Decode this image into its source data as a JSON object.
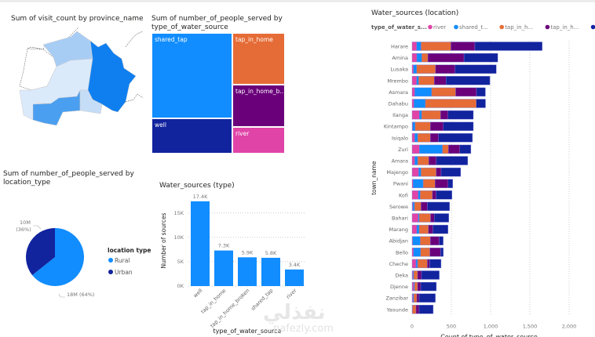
{
  "map": {
    "title": "Sum of visit_count by province_name",
    "colors": [
      "#ffffff",
      "#a8cdf5",
      "#dbeafb",
      "#4a9ff0",
      "#0f7ff0",
      "#c6ddf7"
    ]
  },
  "treemap": {
    "title": "Sum of number_of_people_served by type_of_water_source",
    "tiles": [
      {
        "label": "shared_tap",
        "color": "#118dff"
      },
      {
        "label": "well",
        "color": "#12239e"
      },
      {
        "label": "tap_in_home",
        "color": "#e66c37"
      },
      {
        "label": "tap_in_home_b...",
        "color": "#6b007b"
      },
      {
        "label": "river",
        "color": "#e044a7"
      }
    ]
  },
  "pie": {
    "title": "Sum of number_of_people_served by location_type",
    "legend_title": "location type",
    "slices": [
      {
        "name": "Rural",
        "value": 18,
        "label": "18M (64%)",
        "color": "#118dff"
      },
      {
        "name": "Urban",
        "value": 10,
        "label_value": "10M",
        "label_pct": "(36%)",
        "color": "#12239e"
      }
    ]
  },
  "chart_data": [
    {
      "type": "bar",
      "title": "Water_sources (type)",
      "xlabel": "type_of_water_source",
      "ylabel": "Number of sources",
      "categories": [
        "well",
        "tap_in_home",
        "tap_in_home_broken",
        "shared_tap",
        "river"
      ],
      "values": [
        17400,
        7300,
        5900,
        5800,
        3400
      ],
      "data_labels": [
        "17.4K",
        "7.3K",
        "5.9K",
        "5.8K",
        "3.4K"
      ],
      "yticks": [
        "0K",
        "5K",
        "10K",
        "15K"
      ],
      "ylim": [
        0,
        18500
      ],
      "color": "#118dff",
      "grid": true
    },
    {
      "type": "bar",
      "orientation": "horizontal-stacked",
      "title": "Water_sources (location)",
      "legend_title": "type_of_water_s...",
      "legend_labels": [
        "river",
        "shared_t...",
        "tap_in_h...",
        "tap_in_h...",
        "well"
      ],
      "legend_placement": "top-left",
      "xlabel": "Count of type_of_water_source",
      "ylabel": "town_name",
      "xticks": [
        "0",
        "500",
        "1,000",
        "1,500",
        "2,000"
      ],
      "xlim": [
        0,
        2000
      ],
      "grid": true,
      "series": [
        {
          "name": "river",
          "color": "#e044a7"
        },
        {
          "name": "shared_tap",
          "color": "#118dff"
        },
        {
          "name": "tap_in_home",
          "color": "#e66c37"
        },
        {
          "name": "tap_in_home_broken",
          "color": "#6b007b"
        },
        {
          "name": "well",
          "color": "#12239e"
        }
      ],
      "categories": [
        "Harare",
        "Amina",
        "Lusaka",
        "Mrembo",
        "Asmara",
        "Dahabu",
        "Ilanga",
        "Kintampo",
        "Isiqalo",
        "Zuri",
        "Amara",
        "Majengo",
        "Pwani",
        "Kofi",
        "Serowe",
        "Bahari",
        "Marang",
        "Abidjan",
        "Bello",
        "Cheche",
        "Deka",
        "Djenne",
        "Zanzibar",
        "Yaounde"
      ],
      "values": [
        [
          57,
          57,
          380,
          306,
          857
        ],
        [
          60,
          64,
          77,
          460,
          430
        ],
        [
          17,
          40,
          242,
          249,
          524
        ],
        [
          57,
          27,
          198,
          151,
          558
        ],
        [
          34,
          215,
          306,
          265,
          114
        ],
        [
          24,
          145,
          648,
          0,
          118
        ],
        [
          94,
          27,
          242,
          94,
          323
        ],
        [
          7,
          30,
          195,
          165,
          383
        ],
        [
          34,
          37,
          161,
          104,
          433
        ],
        [
          94,
          292,
          77,
          145,
          141
        ],
        [
          34,
          37,
          141,
          97,
          400
        ],
        [
          84,
          30,
          192,
          64,
          249
        ],
        [
          13,
          128,
          151,
          165,
          60
        ],
        [
          77,
          27,
          155,
          47,
          202
        ],
        [
          10,
          20,
          84,
          81,
          282
        ],
        [
          77,
          13,
          145,
          47,
          185
        ],
        [
          60,
          30,
          118,
          57,
          192
        ],
        [
          7,
          97,
          128,
          114,
          50
        ],
        [
          17,
          91,
          118,
          138,
          34
        ],
        [
          50,
          20,
          124,
          30,
          145
        ],
        [
          10,
          10,
          50,
          50,
          226
        ],
        [
          20,
          10,
          40,
          40,
          199
        ],
        [
          10,
          10,
          40,
          30,
          206
        ],
        [
          5,
          0,
          45,
          40,
          179
        ]
      ]
    }
  ],
  "watermark": {
    "arabic": "نفذلي",
    "latin": "nafezly.com"
  }
}
